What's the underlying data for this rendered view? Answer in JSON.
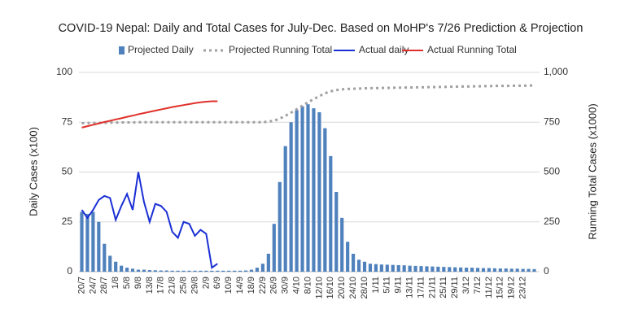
{
  "chart_data": {
    "type": "bar",
    "title": "COVID-19 Nepal: Daily and Total Cases for July-Dec. Based on MoHP's 7/26 Prediction & Projection",
    "y_label": "Daily Cases (x100)",
    "y2_label": "Running Total Cases (x1000)",
    "ylim": [
      0,
      100
    ],
    "yticks": [
      0,
      25,
      50,
      75,
      100
    ],
    "y2lim": [
      0,
      1000
    ],
    "y2ticks": [
      0,
      250,
      500,
      750,
      {
        "value": 1000,
        "label": "1,000"
      }
    ],
    "grid": true,
    "legend": "top",
    "categories": [
      "20/7",
      null,
      "24/7",
      null,
      "28/7",
      null,
      "1/8",
      null,
      "5/8",
      null,
      "9/8",
      null,
      "13/8",
      null,
      "17/8",
      null,
      "21/8",
      null,
      "25/8",
      null,
      "29/8",
      null,
      "2/9",
      null,
      "6/9",
      null,
      "10/9",
      null,
      "14/9",
      null,
      "18/9",
      null,
      "22/9",
      null,
      "26/9",
      null,
      "30/9",
      null,
      "4/10",
      null,
      "8/10",
      null,
      "12/10",
      null,
      "16/10",
      null,
      "20/10",
      null,
      "24/10",
      null,
      "28/10",
      null,
      "1/11",
      null,
      "5/11",
      null,
      "9/11",
      null,
      "13/11",
      null,
      "17/11",
      null,
      "21/11",
      null,
      "25/11",
      null,
      "29/11",
      null,
      "3/12",
      null,
      "7/12",
      null,
      "11/12",
      null,
      "15/12",
      null,
      "19/12",
      null,
      "23/12",
      null,
      null
    ],
    "series": [
      {
        "name": "Projected Daily",
        "type": "bar",
        "color": "#4f81bd",
        "values": [
          30,
          29,
          30,
          25,
          14,
          8,
          5,
          3,
          2,
          1.5,
          1,
          1,
          0.8,
          0.7,
          0.6,
          0.6,
          0.5,
          0.5,
          0.5,
          0.5,
          0.5,
          0.5,
          0.5,
          0.5,
          0.5,
          0.5,
          0.5,
          0.5,
          0.5,
          0.6,
          1,
          2,
          4,
          9,
          24,
          45,
          63,
          75,
          81,
          83,
          84,
          82,
          80,
          72,
          58,
          40,
          27,
          15,
          9,
          6,
          5,
          4,
          3.8,
          3.6,
          3.5,
          3.4,
          3.3,
          3.2,
          3,
          2.9,
          2.8,
          2.7,
          2.6,
          2.5,
          2.4,
          2.3,
          2.2,
          2.1,
          2,
          2,
          1.9,
          1.8,
          1.8,
          1.7,
          1.6,
          1.6,
          1.5,
          1.5,
          1.4,
          1.4,
          1.3
        ]
      },
      {
        "name": "Projected Running Total",
        "type": "line",
        "dashed": true,
        "axis": "y2",
        "color": "#a0a0a0",
        "values": [
          745,
          746,
          746,
          747,
          747,
          748,
          748,
          749,
          749,
          749,
          750,
          750,
          750,
          750,
          750,
          750,
          750,
          750,
          750,
          750,
          750,
          750,
          750,
          750,
          750,
          750,
          750,
          750,
          750,
          750,
          750,
          750,
          750,
          753,
          758,
          768,
          782,
          798,
          815,
          833,
          850,
          866,
          881,
          895,
          905,
          911,
          915,
          917,
          918,
          919,
          920,
          921,
          921,
          922,
          922,
          923,
          923,
          924,
          924,
          925,
          925,
          926,
          926,
          927,
          927,
          928,
          928,
          929,
          929,
          930,
          930,
          931,
          931,
          932,
          932,
          932,
          933,
          933,
          933,
          934,
          934
        ]
      },
      {
        "name": "Actual daily",
        "type": "line",
        "color": "#1a2fd4",
        "values": [
          31,
          27,
          31,
          36,
          38,
          37,
          26,
          33,
          39,
          31,
          50,
          35,
          25,
          34,
          33,
          30,
          20,
          17,
          25,
          24,
          18,
          21,
          19,
          2,
          4,
          null,
          null,
          null,
          null,
          null,
          null,
          null,
          null,
          null,
          null,
          null,
          null,
          null,
          null,
          null,
          null,
          null,
          null,
          null,
          null,
          null,
          null,
          null,
          null,
          null,
          null,
          null,
          null,
          null,
          null,
          null,
          null,
          null,
          null,
          null,
          null,
          null,
          null,
          null,
          null,
          null,
          null,
          null,
          null,
          null,
          null,
          null,
          null,
          null,
          null,
          null,
          null,
          null,
          null,
          null,
          null
        ]
      },
      {
        "name": "Actual Running Total",
        "type": "line",
        "axis": "y2",
        "color": "#e0302a",
        "values": [
          723,
          730,
          737,
          744,
          751,
          757,
          764,
          770,
          777,
          783,
          790,
          796,
          802,
          808,
          814,
          820,
          826,
          831,
          836,
          841,
          846,
          850,
          853,
          855,
          855,
          null,
          null,
          null,
          null,
          null,
          null,
          null,
          null,
          null,
          null,
          null,
          null,
          null,
          null,
          null,
          null,
          null,
          null,
          null,
          null,
          null,
          null,
          null,
          null,
          null,
          null,
          null,
          null,
          null,
          null,
          null,
          null,
          null,
          null,
          null,
          null,
          null,
          null,
          null,
          null,
          null,
          null,
          null,
          null,
          null,
          null,
          null,
          null,
          null,
          null,
          null,
          null,
          null,
          null,
          null,
          null
        ]
      }
    ]
  }
}
